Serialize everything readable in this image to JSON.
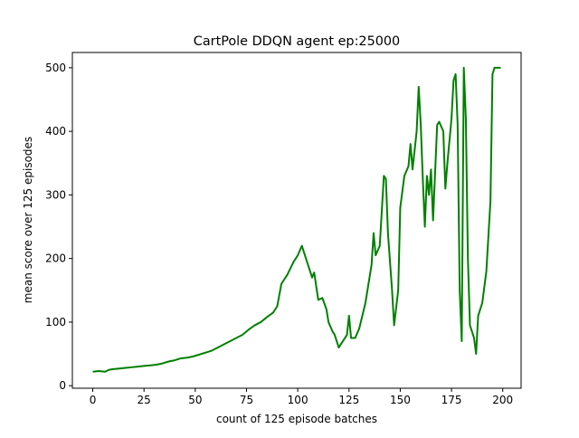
{
  "chart_data": {
    "type": "line",
    "title": "CartPole DDQN agent ep:25000",
    "xlabel": "count of 125 episode batches",
    "ylabel": "mean score over 125 episodes",
    "x": [
      0,
      3,
      6,
      8,
      10,
      13,
      16,
      19,
      22,
      25,
      28,
      31,
      34,
      37,
      40,
      43,
      46,
      49,
      52,
      55,
      58,
      61,
      64,
      67,
      70,
      73,
      76,
      79,
      82,
      85,
      88,
      90,
      92,
      95,
      98,
      100,
      102,
      104,
      105,
      107,
      108,
      110,
      112,
      114,
      115,
      117,
      118,
      120,
      122,
      124,
      125,
      126,
      128,
      130,
      133,
      136,
      137,
      138,
      140,
      142,
      143,
      144,
      146,
      147,
      149,
      150,
      152,
      154,
      155,
      156,
      158,
      159,
      160,
      161,
      162,
      163,
      164,
      165,
      166,
      168,
      169,
      171,
      172,
      173,
      175,
      176,
      177,
      178,
      179,
      180,
      181,
      182,
      183,
      184,
      186,
      187,
      188,
      190,
      192,
      194,
      195,
      196,
      197,
      199
    ],
    "series": [
      {
        "name": "mean score",
        "color": "#008000",
        "values": [
          22,
          23,
          22,
          25,
          26,
          27,
          28,
          29,
          30,
          31,
          32,
          33,
          35,
          38,
          40,
          43,
          44,
          46,
          49,
          52,
          55,
          60,
          65,
          70,
          75,
          80,
          88,
          95,
          100,
          108,
          115,
          125,
          160,
          175,
          195,
          205,
          220,
          200,
          190,
          170,
          178,
          135,
          138,
          120,
          100,
          85,
          80,
          60,
          70,
          80,
          110,
          75,
          75,
          90,
          130,
          190,
          240,
          205,
          220,
          330,
          325,
          240,
          150,
          95,
          150,
          280,
          330,
          345,
          380,
          340,
          400,
          470,
          410,
          325,
          250,
          330,
          300,
          340,
          260,
          410,
          415,
          400,
          310,
          350,
          420,
          480,
          490,
          410,
          150,
          70,
          500,
          420,
          200,
          95,
          75,
          50,
          110,
          130,
          180,
          290,
          490,
          500,
          500,
          500
        ]
      }
    ],
    "xlim": [
      -9.95,
      208.95
    ],
    "ylim": [
      -4,
      524
    ],
    "xticks": [
      0,
      25,
      50,
      75,
      100,
      125,
      150,
      175,
      200
    ],
    "yticks": [
      0,
      100,
      200,
      300,
      400,
      500
    ]
  }
}
